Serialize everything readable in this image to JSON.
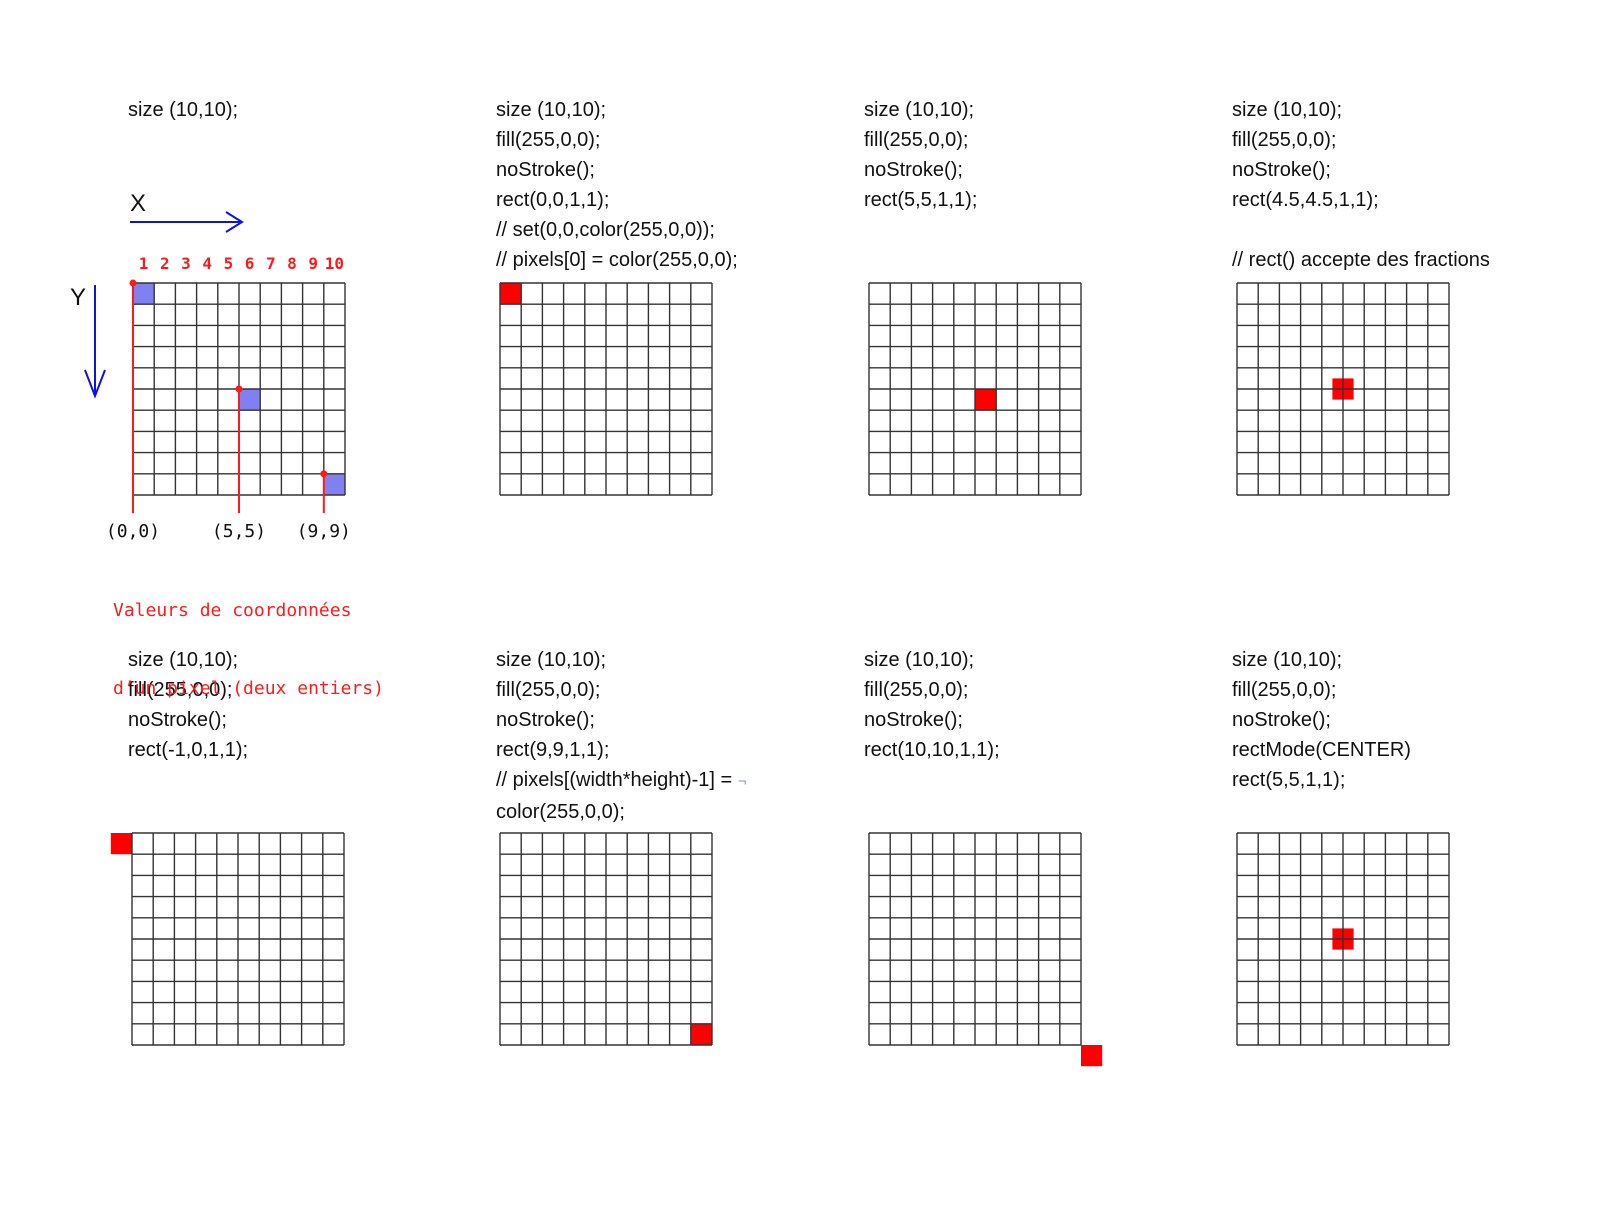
{
  "panels": [
    {
      "id": "p1",
      "code": [
        "size (10,10);"
      ],
      "cells": [],
      "axes": {
        "x_label": "X",
        "y_label": "Y",
        "col_numbers": [
          "1",
          "2",
          "3",
          "4",
          "5",
          "6",
          "7",
          "8",
          "9",
          "10"
        ],
        "points": [
          {
            "col": 0,
            "row": 0,
            "label": "(0,0)"
          },
          {
            "col": 5,
            "row": 5,
            "label": "(5,5)"
          },
          {
            "col": 9,
            "row": 9,
            "label": "(9,9)"
          }
        ],
        "caption": [
          "Valeurs de coordonnées",
          "d’un pixel (deux entiers)"
        ]
      }
    },
    {
      "id": "p2",
      "code": [
        "size (10,10);",
        "fill(255,0,0);",
        "noStroke();",
        "rect(0,0,1,1);",
        "// set(0,0,color(255,0,0));",
        "// pixels[0] = color(255,0,0);"
      ],
      "cells": [
        {
          "x": 0,
          "y": 0,
          "w": 1,
          "h": 1
        }
      ]
    },
    {
      "id": "p3",
      "code": [
        "size (10,10);",
        "fill(255,0,0);",
        "noStroke();",
        "rect(5,5,1,1);"
      ],
      "cells": [
        {
          "x": 5,
          "y": 5,
          "w": 1,
          "h": 1
        }
      ]
    },
    {
      "id": "p4",
      "code": [
        "size (10,10);",
        "fill(255,0,0);",
        "noStroke();",
        "rect(4.5,4.5,1,1);",
        "",
        "// rect() accepte des fractions"
      ],
      "cells": [
        {
          "x": 4.5,
          "y": 4.5,
          "w": 1,
          "h": 1
        }
      ]
    },
    {
      "id": "p5",
      "code": [
        "size (10,10);",
        "fill(255,0,0);",
        "noStroke();",
        "rect(-1,0,1,1);"
      ],
      "cells": [
        {
          "x": -1,
          "y": 0,
          "w": 1,
          "h": 1
        }
      ]
    },
    {
      "id": "p6",
      "code": [
        "size (10,10);",
        "fill(255,0,0);",
        "noStroke();",
        "rect(9,9,1,1);",
        "// pixels[(width*height)-1] = ",
        "color(255,0,0);"
      ],
      "line_continuation_mark": "¬",
      "cells": [
        {
          "x": 9,
          "y": 9,
          "w": 1,
          "h": 1
        }
      ]
    },
    {
      "id": "p7",
      "code": [
        "size (10,10);",
        "fill(255,0,0);",
        "noStroke();",
        "rect(10,10,1,1);"
      ],
      "cells": [
        {
          "x": 10,
          "y": 10,
          "w": 1,
          "h": 1
        }
      ]
    },
    {
      "id": "p8",
      "code": [
        "size (10,10);",
        "fill(255,0,0);",
        "noStroke();",
        "rectMode(CENTER)",
        "rect(5,5,1,1);"
      ],
      "cells": [
        {
          "x": 4.5,
          "y": 4.5,
          "w": 1,
          "h": 1
        }
      ]
    }
  ],
  "grid_size": 10,
  "colors": {
    "fill_red": "#ff0000",
    "axis_blue": "#1010e0",
    "marker_red": "#ff1a1a",
    "pixel_blue": "#8080f0",
    "grid": "#333333"
  }
}
